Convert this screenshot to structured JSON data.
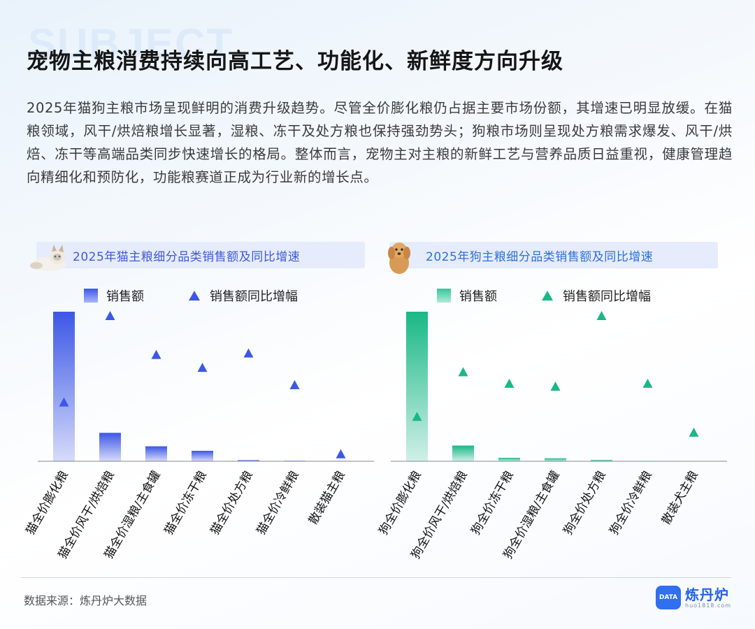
{
  "background_word": "SUBJECT",
  "title": "宠物主粮消费持续向高工艺、功能化、新鲜度方向升级",
  "intro": "2025年猫狗主粮市场呈现鲜明的消费升级趋势。尽管全价膨化粮仍占据主要市场份额，其增速已明显放缓。在猫粮领域，风干/烘焙粮增长显著，湿粮、冻干及处方粮也保持强劲势头；狗粮市场则呈现处方粮需求爆发、风干/烘焙、冻干等高端品类同步快速增长的格局。整体而言，宠物主对主粮的新鲜工艺与营养品质日益重视，健康管理趋向精细化和预防化，功能粮赛道正成为行业新的增长点。",
  "legend": {
    "sales": "销售额",
    "growth": "销售额同比增幅"
  },
  "chart_data": [
    {
      "type": "bar",
      "title": "2025年猫主粮细分品类销售额及同比增速",
      "icon": "cat-image",
      "color": "#3d57e6",
      "categories": [
        "猫全价膨化粮",
        "猫全价风干/烘焙粮",
        "猫全价湿粮/主食罐",
        "猫全价冻干粮",
        "猫全价处方粮",
        "猫全价冷鲜粮",
        "散装猫主粮"
      ],
      "series": [
        {
          "name": "销售额",
          "kind": "bar",
          "values": [
            100,
            19,
            10,
            7,
            0.8,
            0.3,
            0.1
          ]
        },
        {
          "name": "销售额同比增幅",
          "kind": "triangle",
          "values": [
            40,
            100,
            73,
            64,
            74,
            52,
            4
          ]
        }
      ]
    },
    {
      "type": "bar",
      "title": "2025年狗主粮细分品类销售额及同比增速",
      "icon": "dog-image",
      "color": "#19b885",
      "categories": [
        "狗全价膨化粮",
        "狗全价风干/烘焙粮",
        "狗全价冻干粮",
        "狗全价湿粮/主食罐",
        "狗全价处方粮",
        "狗全价冷鲜粮",
        "散装犬主粮"
      ],
      "series": [
        {
          "name": "销售额",
          "kind": "bar",
          "values": [
            100,
            10.5,
            2.3,
            2,
            0.9,
            0.2,
            0
          ]
        },
        {
          "name": "销售额同比增幅",
          "kind": "triangle",
          "values": [
            30,
            61,
            53,
            51,
            100,
            53,
            19
          ]
        }
      ]
    }
  ],
  "source": "数据来源：炼丹炉大数据",
  "logo": {
    "name": "炼丹炉",
    "badge": "DATA",
    "url": "huo1818.com"
  }
}
